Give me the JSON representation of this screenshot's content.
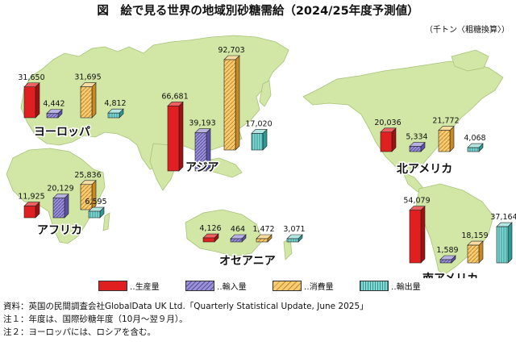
{
  "title": "図　絵で見る世界の地域別砂糖需給（2024/25年度予測値）",
  "unit": "（千トン〈粗糖換算〉）",
  "legend": {
    "production": "生産量",
    "import": "輸入量",
    "consumption": "消費量",
    "export": "輸出量"
  },
  "colors": {
    "production": "#e02020",
    "import": "#8f86cc",
    "consumption": "#f4c060",
    "export": "#7fd0cc"
  },
  "notes": [
    "資料：英国の民間調査会社GlobalData UK Ltd.「Quarterly Statistical Update, June 2025」",
    "注１：年度は、国際砂糖年度（10月～翌９月）。",
    "注２：ヨーロッパには、ロシアを含む。"
  ],
  "chart_data": {
    "type": "bar",
    "categories": [
      "生産量",
      "輸入量",
      "消費量",
      "輸出量"
    ],
    "regions": [
      {
        "name": "ヨーロッパ",
        "values": [
          31650,
          4442,
          31695,
          4812
        ],
        "labels": [
          "31,650",
          "4,442",
          "31,695",
          "4,812"
        ]
      },
      {
        "name": "アジア",
        "values": [
          66681,
          39193,
          92703,
          17020
        ],
        "labels": [
          "66,681",
          "39,193",
          "92,703",
          "17,020"
        ]
      },
      {
        "name": "アフリカ",
        "values": [
          11925,
          20129,
          25836,
          6595
        ],
        "labels": [
          "11,925",
          "20,129",
          "25,836",
          "6,595"
        ]
      },
      {
        "name": "オセアニア",
        "values": [
          4126,
          464,
          1472,
          3071
        ],
        "labels": [
          "4,126",
          "464",
          "1,472",
          "3,071"
        ]
      },
      {
        "name": "北アメリカ",
        "values": [
          20036,
          5334,
          21772,
          4068
        ],
        "labels": [
          "20,036",
          "5,334",
          "21,772",
          "4,068"
        ]
      },
      {
        "name": "南アメリカ",
        "values": [
          54079,
          1589,
          18159,
          37164
        ],
        "labels": [
          "54,079",
          "1,589",
          "18,159",
          "37,164"
        ]
      }
    ]
  }
}
